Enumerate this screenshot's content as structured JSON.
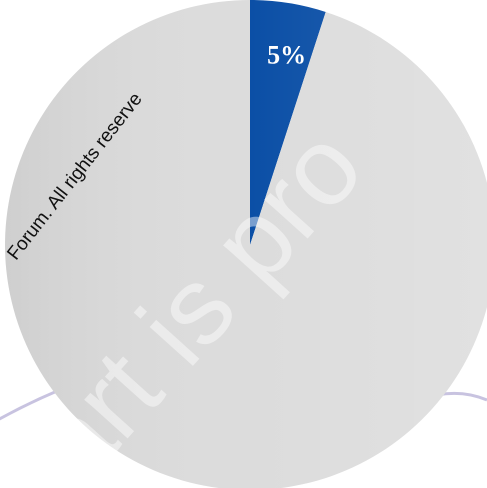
{
  "chart_data": {
    "type": "pie",
    "values": [
      5,
      95
    ],
    "value_labels": [
      "5%",
      null
    ],
    "colors": [
      "#0b4fa6",
      "#dcdcdc"
    ],
    "annotations": [
      "Forum. All rights reserve",
      "art is pro"
    ]
  }
}
